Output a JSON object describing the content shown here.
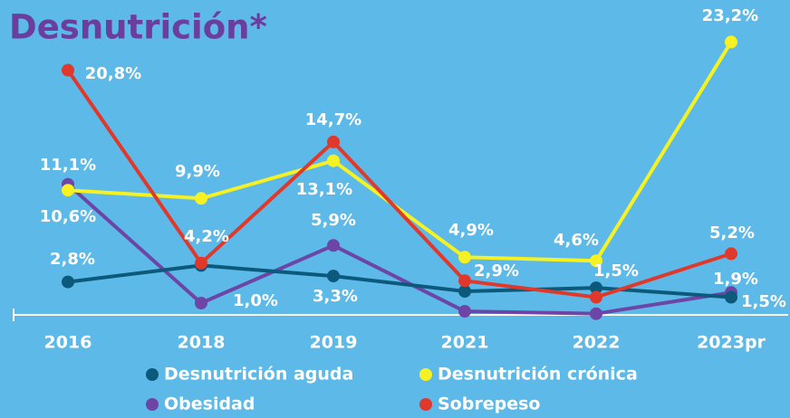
{
  "chart_data": {
    "type": "line",
    "title": "Desnutrición*",
    "categories": [
      "2016",
      "2018",
      "2019",
      "2021",
      "2022",
      "2023pr"
    ],
    "ylim": [
      0,
      24
    ],
    "series": [
      {
        "name": "Desnutrición aguda",
        "color": "#0b5a7c",
        "values": [
          2.8,
          4.2,
          3.3,
          2.0,
          2.3,
          1.5
        ],
        "value_labels": [
          "2,8%",
          "4,2%",
          "3,3%",
          null,
          null,
          "1,5%"
        ]
      },
      {
        "name": "Desnutrición crónica",
        "color": "#f6f123",
        "values": [
          10.6,
          9.9,
          13.1,
          4.9,
          4.6,
          23.2
        ],
        "value_labels": [
          "10,6%",
          "9,9%",
          "13,1%",
          "4,9%",
          "4,6%",
          "23,2%"
        ]
      },
      {
        "name": "Obesidad",
        "color": "#6c45a6",
        "values": [
          11.1,
          1.0,
          5.9,
          0.3,
          0.1,
          1.9
        ],
        "value_labels": [
          "11,1%",
          "1,0%",
          "5,9%",
          null,
          null,
          "1,9%"
        ]
      },
      {
        "name": "Sobrepeso",
        "color": "#e0392b",
        "values": [
          20.8,
          4.4,
          14.7,
          2.9,
          1.5,
          5.2
        ],
        "value_labels": [
          "20,8%",
          null,
          "14,7%",
          "2,9%",
          "1,5%",
          "5,2%"
        ]
      }
    ]
  }
}
